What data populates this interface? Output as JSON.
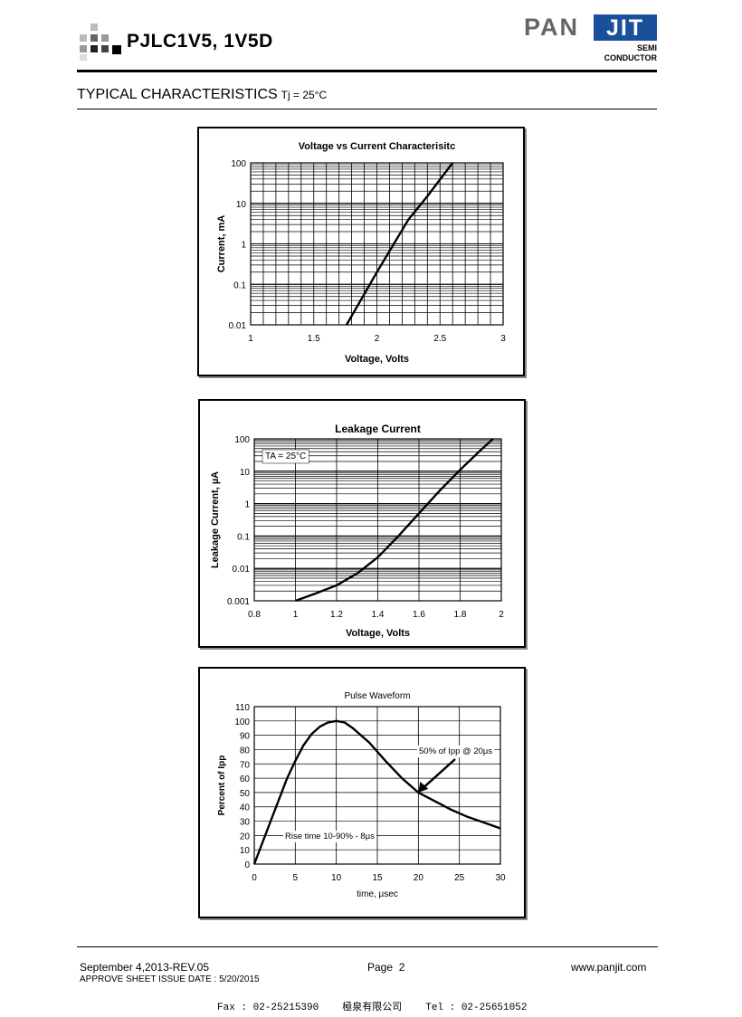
{
  "header": {
    "part_title": "PJLC1V5, 1V5D",
    "brand_name": "PAN",
    "brand_highlight": "JIT",
    "brand_sub1": "SEMI",
    "brand_sub2": "CONDUCTOR"
  },
  "section": {
    "title": "TYPICAL CHARACTERISTICS",
    "condition": "Tj = 25°C"
  },
  "colors": {
    "text": "#000000",
    "brand_blue": "#1a4f9c",
    "brand_gray": "#666666"
  },
  "chart_data": [
    {
      "type": "line",
      "title": "Voltage vs Current Characterisitc",
      "xlabel": "Voltage, Volts",
      "ylabel": "Current, mA",
      "xlim": [
        1,
        3
      ],
      "ylim": [
        0.01,
        100
      ],
      "yscale": "log",
      "xticks": [
        "1",
        "1.5",
        "2",
        "2.5",
        "3"
      ],
      "yticks": [
        "0.01",
        "0.1",
        "1",
        "10",
        "100"
      ],
      "grid": true,
      "series": [
        {
          "x": [
            1.76,
            2.0,
            2.25,
            2.4,
            2.6
          ],
          "y": [
            0.01,
            0.2,
            4,
            15,
            100
          ]
        }
      ]
    },
    {
      "type": "line",
      "title": "Leakage Current",
      "xlabel": "Voltage, Volts",
      "ylabel": "Leakage Current, µA",
      "xlim": [
        0.8,
        2
      ],
      "ylim": [
        0.001,
        100
      ],
      "yscale": "log",
      "xticks": [
        "0.8",
        "1",
        "1.2",
        "1.4",
        "1.6",
        "1.8",
        "2"
      ],
      "yticks": [
        "0.001",
        "0.01",
        "0.1",
        "1",
        "10",
        "100"
      ],
      "grid": true,
      "annotations": [
        "TA = 25°C"
      ],
      "series": [
        {
          "x": [
            1.0,
            1.1,
            1.2,
            1.3,
            1.4,
            1.5,
            1.6,
            1.7,
            1.8,
            1.9,
            1.96
          ],
          "y": [
            0.001,
            0.0017,
            0.003,
            0.007,
            0.022,
            0.1,
            0.5,
            2.5,
            11,
            45,
            100
          ]
        }
      ]
    },
    {
      "type": "line",
      "title": "Pulse Waveform",
      "xlabel": "time, µsec",
      "ylabel": "Percent of Ipp",
      "xlim": [
        0,
        30
      ],
      "ylim": [
        0,
        110
      ],
      "xticks": [
        "0",
        "5",
        "10",
        "15",
        "20",
        "25",
        "30"
      ],
      "yticks": [
        "0",
        "10",
        "20",
        "30",
        "40",
        "50",
        "60",
        "70",
        "80",
        "90",
        "100",
        "110"
      ],
      "grid": true,
      "annotations": [
        "50% of Ipp @ 20µs",
        "Rise time 10-90% - 8µs"
      ],
      "series": [
        {
          "x": [
            0,
            2,
            4,
            5,
            6,
            7,
            8,
            9,
            10,
            11,
            12,
            14,
            16,
            18,
            20,
            22,
            24,
            26,
            28,
            30
          ],
          "y": [
            0,
            30,
            60,
            72,
            83,
            91,
            96,
            99,
            100,
            99,
            95,
            85,
            72,
            60,
            50,
            44,
            38,
            33,
            29,
            25
          ]
        }
      ]
    }
  ],
  "footer": {
    "date": "September 4,2013-REV.05",
    "approve": "APPROVE SHEET ISSUE DATE : 5/20/2015",
    "page": "Page  2",
    "website": "www.panjit.com",
    "fax": "Fax : 02-25215390",
    "company": "極泉有限公司",
    "tel": "Tel : 02-25651052"
  }
}
